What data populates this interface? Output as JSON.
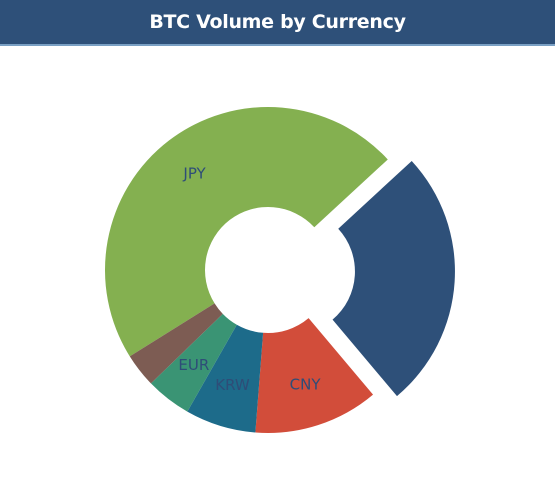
{
  "header": {
    "title": "BTC Volume by Currency",
    "background": "#2e5079"
  },
  "chart_data": {
    "type": "pie",
    "variant": "donut",
    "title": "BTC Volume by Currency",
    "legend": "none",
    "slices": [
      {
        "label": "JPY",
        "value": 49.0,
        "color": "#84b050",
        "exploded": false
      },
      {
        "label": "",
        "value": 26.8,
        "color": "#2e5079",
        "exploded": true
      },
      {
        "label": "CNY",
        "value": 12.9,
        "color": "#d24d3a",
        "exploded": false
      },
      {
        "label": "KRW",
        "value": 7.3,
        "color": "#1d6b8a",
        "exploded": false
      },
      {
        "label": "EUR",
        "value": 4.7,
        "color": "#3a9474",
        "exploded": false
      },
      {
        "label": "",
        "value": 3.5,
        "color": "#7d5c53",
        "exploded": false
      }
    ]
  }
}
